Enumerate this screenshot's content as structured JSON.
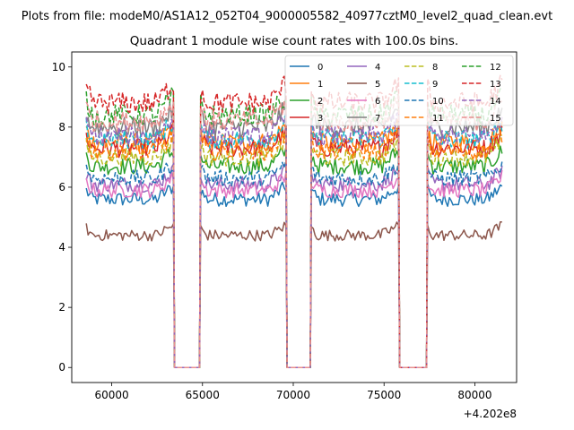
{
  "chart_data": {
    "type": "line",
    "suptitle": "Plots from file: modeM0/AS1A12_052T04_9000005582_40977cztM0_level2_quad_clean.evt",
    "title": "Quadrant 1 module wise count rates with 100.0s bins.",
    "xlabel": "",
    "ylabel": "",
    "x_offset_label": "+4.202e8",
    "xlim": [
      57800,
      82300
    ],
    "ylim": [
      -0.5,
      10.5
    ],
    "x_ticks": [
      60000,
      65000,
      70000,
      75000,
      80000
    ],
    "x_tick_labels": [
      "60000",
      "65000",
      "70000",
      "75000",
      "80000"
    ],
    "y_ticks": [
      0,
      2,
      4,
      6,
      8,
      10
    ],
    "y_tick_labels": [
      "0",
      "2",
      "4",
      "6",
      "8",
      "10"
    ],
    "bin_seconds": 100,
    "segments": [
      [
        58600,
        63400
      ],
      [
        64900,
        69600
      ],
      [
        71000,
        75800
      ],
      [
        77400,
        81500
      ]
    ],
    "gaps": [
      [
        63400,
        64900
      ],
      [
        69600,
        71000
      ],
      [
        75800,
        77400
      ]
    ],
    "legend_position": "upper-right",
    "series": [
      {
        "name": "0",
        "color": "#1f77b4",
        "dash": "solid",
        "mean": 5.6
      },
      {
        "name": "1",
        "color": "#ff7f0e",
        "dash": "solid",
        "mean": 7.5
      },
      {
        "name": "2",
        "color": "#2ca02c",
        "dash": "solid",
        "mean": 6.7
      },
      {
        "name": "3",
        "color": "#d62728",
        "dash": "solid",
        "mean": 7.3
      },
      {
        "name": "4",
        "color": "#9467bd",
        "dash": "solid",
        "mean": 6.1
      },
      {
        "name": "5",
        "color": "#8c564b",
        "dash": "solid",
        "mean": 4.4
      },
      {
        "name": "6",
        "color": "#e377c2",
        "dash": "solid",
        "mean": 5.9
      },
      {
        "name": "7",
        "color": "#7f7f7f",
        "dash": "solid",
        "mean": 8.0
      },
      {
        "name": "8",
        "color": "#bcbd22",
        "dash": "dashed",
        "mean": 7.0
      },
      {
        "name": "9",
        "color": "#17becf",
        "dash": "dashed",
        "mean": 7.6
      },
      {
        "name": "10",
        "color": "#1f77b4",
        "dash": "dashed",
        "mean": 6.3
      },
      {
        "name": "11",
        "color": "#ff7f0e",
        "dash": "dashed",
        "mean": 7.2
      },
      {
        "name": "12",
        "color": "#2ca02c",
        "dash": "dashed",
        "mean": 8.4
      },
      {
        "name": "13",
        "color": "#d62728",
        "dash": "dashed",
        "mean": 8.8
      },
      {
        "name": "14",
        "color": "#9467bd",
        "dash": "dashed",
        "mean": 7.7
      },
      {
        "name": "15",
        "color": "#e8908f",
        "dash": "dashed",
        "mean": 8.2
      }
    ]
  }
}
